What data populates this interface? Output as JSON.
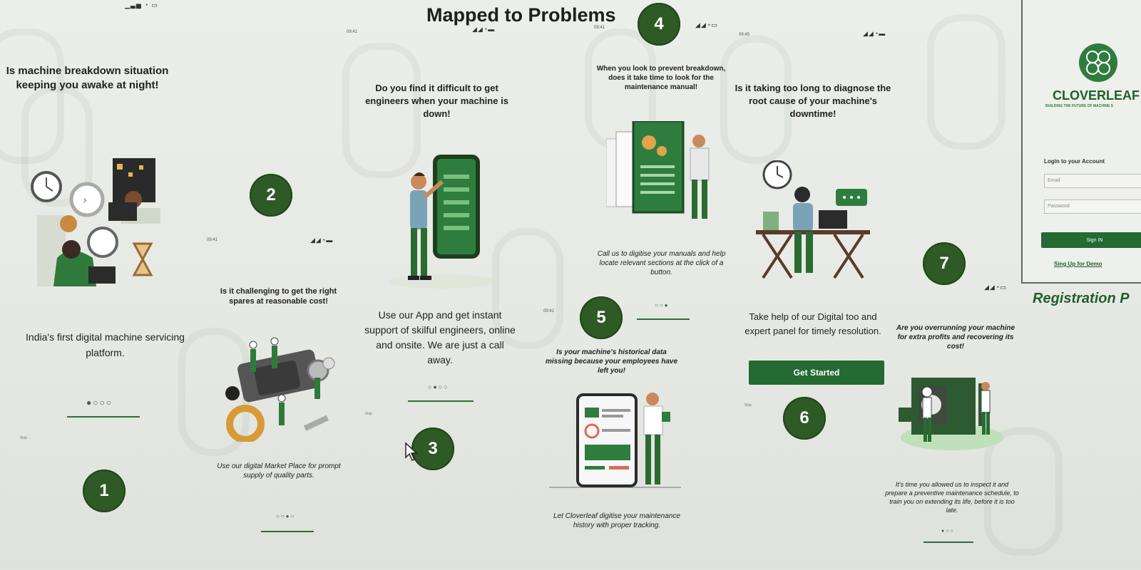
{
  "title": "Mapped to Problems",
  "badges": [
    "1",
    "2",
    "3",
    "4",
    "5",
    "6",
    "7"
  ],
  "screens": {
    "s1": {
      "question": "Is machine breakdown situation keeping you awake at night!",
      "answer": "India's first digital machine servicing platform.",
      "dots": "●○○○",
      "skip": "Skip"
    },
    "s2": {
      "question": "Is it challenging to get the right spares at reasonable cost!",
      "answer": "Use our digital Market Place for prompt supply of quality parts.",
      "dots": "○○●○"
    },
    "s3": {
      "question": "Do you find it difficult to get engineers when your machine is down!",
      "answer": "Use our App and get instant support of skilful engineers, online and onsite. We are just a call away.",
      "dots": "○●○○",
      "skip": "Skip"
    },
    "s4": {
      "question": "When you look to prevent breakdown, does it take time to look for the maintenance manual!",
      "answer": "Call us to digitise your manuals and help locate relevant sections at the click of a button.",
      "dots": "○○●"
    },
    "s5": {
      "question": "Is your machine's historical data missing because your employees have left you!",
      "answer": "Let Cloverleaf digitise your maintenance history with proper tracking."
    },
    "s6": {
      "question": "Is it taking too long to diagnose the root cause of your machine's downtime!",
      "answer": "Take help of our Digital too and expert panel for timely resolution.",
      "button": "Get Started",
      "skip": "Skip"
    },
    "s7": {
      "question": "Are you overrunning your machine for extra profits and recovering its cost!",
      "answer": "It's time you allowed us to inspect it and prepare a preventive maintenance schedule, to train you on extending its life, before it is too late.",
      "dots": "●○○"
    }
  },
  "login": {
    "brand": "CLOVERLEAF",
    "tagline": "BUILDING THE FUTURE OF MACHINE S",
    "heading": "Login to your Account",
    "email_placeholder": "Email",
    "password_placeholder": "Password",
    "sign_in": "Sign IN",
    "signup": "Sing Up for Demo",
    "registration": "Registration P"
  },
  "colors": {
    "brand_green": "#236a33",
    "badge_green": "#2d5a25",
    "background": "#e8eae5"
  }
}
